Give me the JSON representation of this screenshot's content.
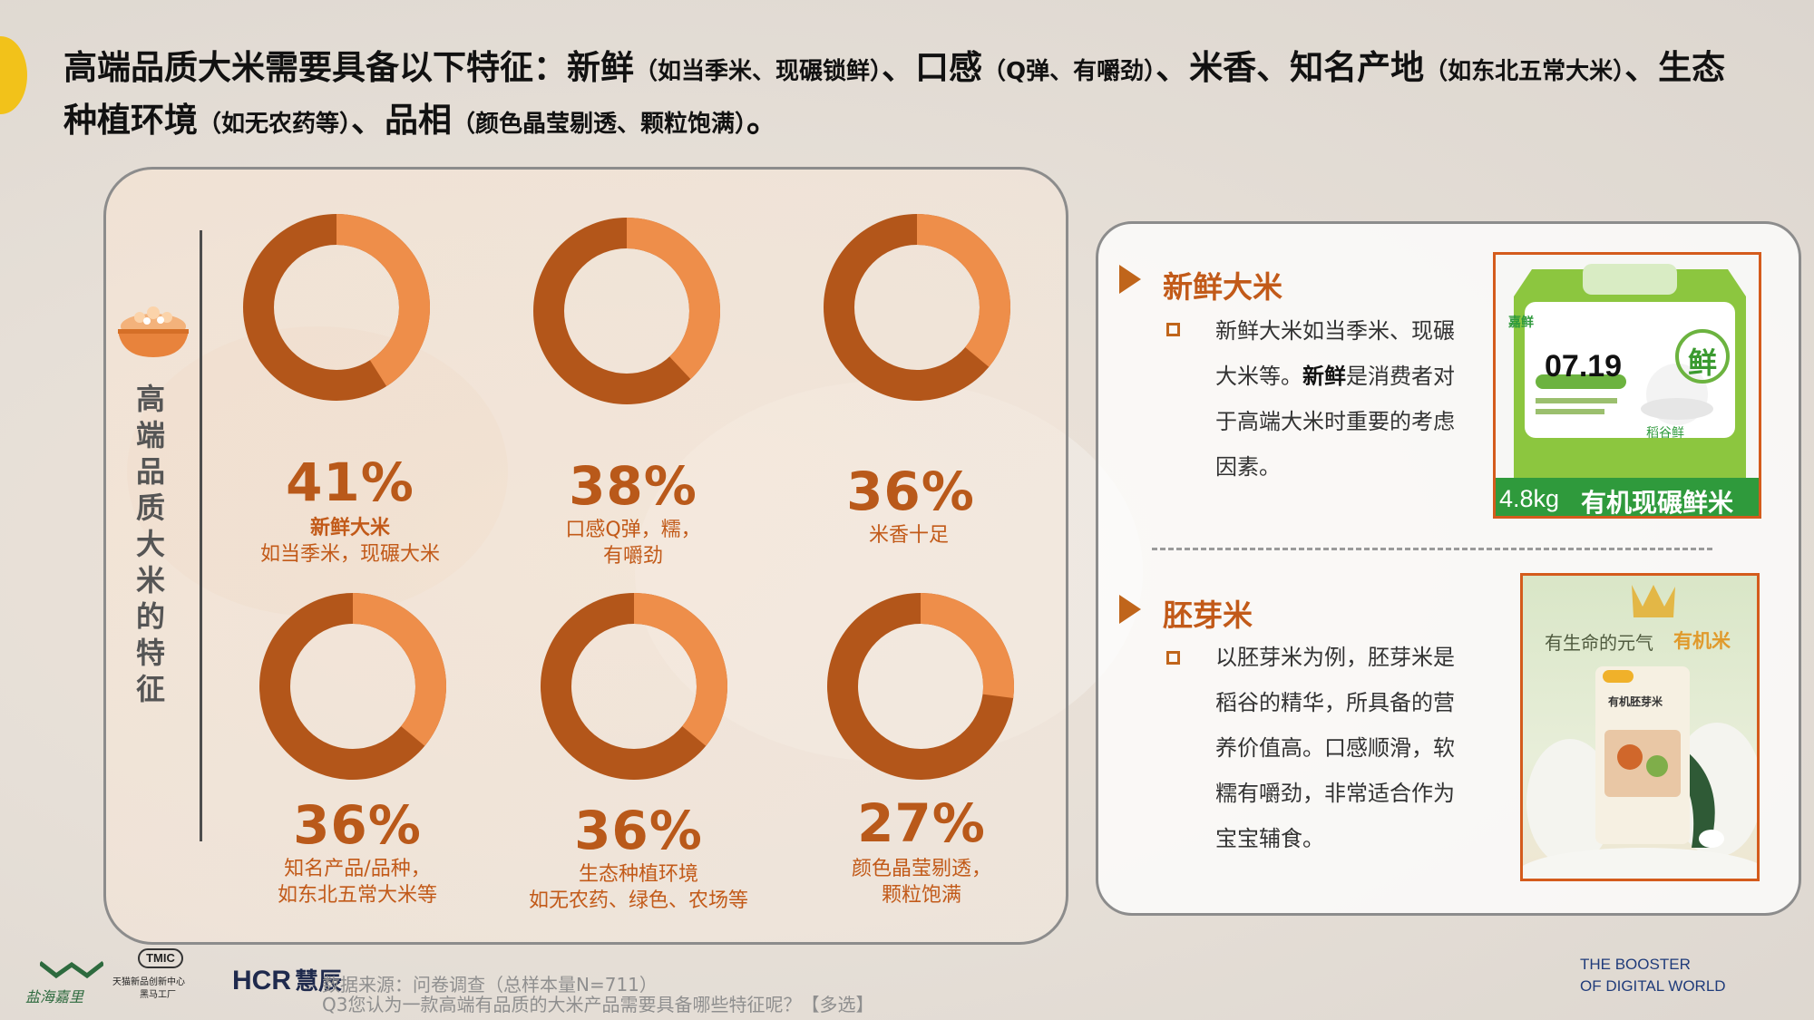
{
  "headline": {
    "p1": "高端品质大米需要具备以下特征：新鲜",
    "p2": "（如当季米、现碾锁鲜）",
    "p3": "、口感",
    "p4": "（Q弹、有嚼劲）",
    "p5": "、米香、知名产地",
    "p6": "（如东北五常大米）",
    "p7": "、生态种植环境",
    "p8": "（如无农药等）",
    "p9": "、品相",
    "p10": "（颜色晶莹剔透、颗粒饱满）",
    "p11": "。"
  },
  "left_panel": {
    "vertical_title": "高端品质大米的特征",
    "items": [
      {
        "pct": "41%",
        "value": 41,
        "label1": "新鲜大米",
        "label2": "如当季米，现碾大米"
      },
      {
        "pct": "38%",
        "value": 38,
        "label1": "口感Q弹，糯，",
        "label2": "有嚼劲"
      },
      {
        "pct": "36%",
        "value": 36,
        "label1": "米香十足",
        "label2": ""
      },
      {
        "pct": "36%",
        "value": 36,
        "label1": "知名产品/品种，",
        "label2": "如东北五常大米等"
      },
      {
        "pct": "36%",
        "value": 36,
        "label1": "生态种植环境",
        "label2": "如无农药、绿色、农场等"
      },
      {
        "pct": "27%",
        "value": 27,
        "label1": "颜色晶莹剔透，",
        "label2": "颗粒饱满"
      }
    ],
    "colors": {
      "dark": "#b3561a",
      "light": "#ee8e4a"
    }
  },
  "right_panel": {
    "sec1": {
      "title": "新鲜大米",
      "lines": [
        "新鲜大米如当季米、现碾",
        "大米等。",
        "新鲜",
        "是消费者对",
        "于高端大米时重要的考虑",
        "因素。"
      ]
    },
    "sec2": {
      "title": "胚芽米",
      "lines": [
        "以胚芽米为例，胚芽米是",
        "稻谷的精华，所具备的营",
        "养价值高。口感顺滑，软",
        "糯有嚼劲，非常适合作为",
        "宝宝辅食。"
      ]
    },
    "prod1": {
      "date": "07.19",
      "fresh": "鲜",
      "weight": "4.8kg",
      "banner": "有机现碾鲜米",
      "sub": "稻谷鲜",
      "brand": "嘉鲜"
    },
    "prod2": {
      "slogan1": "有生命的元气",
      "slogan2": "有机米",
      "pkg": "有机胚芽米"
    }
  },
  "footer": {
    "logo1": "盐海嘉里",
    "logo2_top": "TMIC",
    "logo2_bottom": "天猫新品创新中心",
    "logo2_sub": "黑马工厂",
    "logo3": "HCR",
    "logo3_cn": "慧辰",
    "source1": "数据来源：问卷调查（总样本量N=711）",
    "source2": "Q3您认为一款高端有品质的大米产品需要具备哪些特征呢？【多选】",
    "booster1": "THE BOOSTER",
    "booster2": "OF DIGITAL WORLD"
  }
}
